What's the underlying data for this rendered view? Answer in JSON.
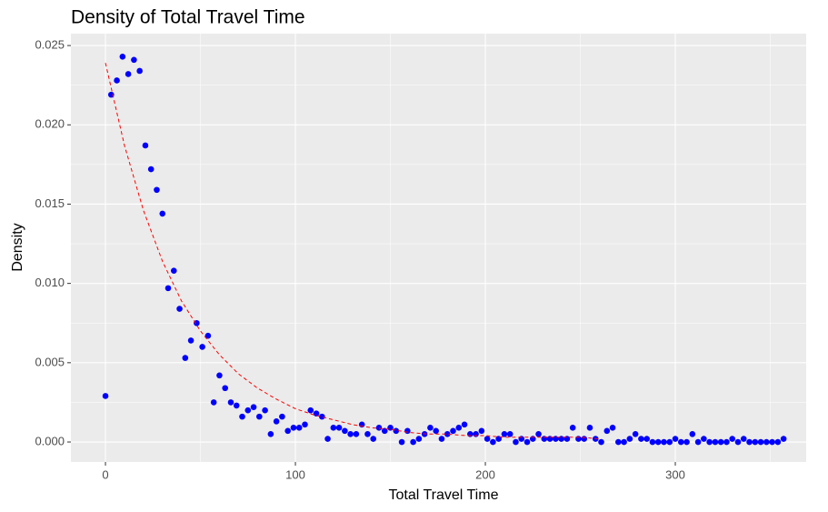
{
  "chart_data": {
    "type": "scatter",
    "title": "Density of Total Travel Time",
    "xlabel": "Total Travel Time",
    "ylabel": "Density",
    "xlim": [
      -18.2,
      368.9
    ],
    "xticks": [
      0,
      100,
      200,
      300
    ],
    "ylim": [
      -0.00126,
      0.02575
    ],
    "yticks": [
      {
        "value": 0,
        "label": "0.000"
      },
      {
        "value": 0.005,
        "label": "0.005"
      },
      {
        "value": 0.01,
        "label": "0.010"
      },
      {
        "value": 0.015,
        "label": "0.015"
      },
      {
        "value": 0.02,
        "label": "0.020"
      },
      {
        "value": 0.025,
        "label": "0.025"
      }
    ],
    "grid": true,
    "series": [
      {
        "mode": "points",
        "color": "#0000ff",
        "x": [
          0,
          3,
          6,
          9,
          12,
          15,
          18,
          21,
          24,
          27,
          30,
          33,
          36,
          39,
          42,
          45,
          48,
          51,
          54,
          57,
          60,
          63,
          66,
          69,
          72,
          75,
          78,
          81,
          84,
          87,
          90,
          93,
          96,
          99,
          102,
          105,
          108,
          111,
          114,
          117,
          120,
          123,
          126,
          129,
          132,
          135,
          138,
          141,
          144,
          147,
          150,
          153,
          156,
          159,
          162,
          165,
          168,
          171,
          174,
          177,
          180,
          183,
          186,
          189,
          192,
          195,
          198,
          201,
          204,
          207,
          210,
          213,
          216,
          219,
          222,
          225,
          228,
          231,
          234,
          237,
          240,
          243,
          246,
          249,
          252,
          255,
          258,
          261,
          264,
          267,
          270,
          273,
          276,
          279,
          282,
          285,
          288,
          291,
          294,
          297,
          300,
          303,
          306,
          309,
          312,
          315,
          318,
          321,
          324,
          327,
          330,
          333,
          336,
          339,
          342,
          345,
          348,
          351,
          354,
          357
        ],
        "values": [
          0.0029,
          0.0219,
          0.0228,
          0.0243,
          0.0232,
          0.0241,
          0.0234,
          0.0187,
          0.0172,
          0.0159,
          0.0144,
          0.0097,
          0.0108,
          0.0084,
          0.0053,
          0.0064,
          0.0075,
          0.006,
          0.0067,
          0.0025,
          0.0042,
          0.0034,
          0.0025,
          0.0023,
          0.0016,
          0.002,
          0.0022,
          0.0016,
          0.002,
          0.0005,
          0.0013,
          0.0016,
          0.0007,
          0.0009,
          0.0009,
          0.0011,
          0.002,
          0.0018,
          0.0016,
          0.0002,
          0.0009,
          0.0009,
          0.0007,
          0.0005,
          0.0005,
          0.0011,
          0.0005,
          0.0002,
          0.0009,
          0.0007,
          0.0009,
          0.0007,
          0,
          0.0007,
          0,
          0.0002,
          0.0005,
          0.0009,
          0.0007,
          0.0002,
          0.0005,
          0.0007,
          0.0009,
          0.0011,
          0.0005,
          0.0005,
          0.0007,
          0.0002,
          0,
          0.0002,
          0.0005,
          0.0005,
          0,
          0.0002,
          0,
          0.0002,
          0.0005,
          0.0002,
          0.0002,
          0.0002,
          0.0002,
          0.0002,
          0.0009,
          0.0002,
          0.0002,
          0.0009,
          0.0002,
          0,
          0.0007,
          0.0009,
          0,
          0,
          0.0002,
          0.0005,
          0.0002,
          0.0002,
          0,
          0,
          0,
          0,
          0.0002,
          0,
          0,
          0.0005,
          0,
          0.0002,
          0,
          0,
          0,
          0,
          0.0002,
          0,
          0.0002,
          0,
          0,
          0,
          0,
          0,
          0,
          0.0002
        ]
      },
      {
        "mode": "line",
        "color": "#ff0000",
        "dash": "4 3",
        "x": [
          0,
          10,
          20,
          30,
          40,
          50,
          60,
          70,
          80,
          90,
          100,
          110,
          120,
          130,
          140,
          150,
          160,
          170,
          180,
          190,
          200,
          210,
          220,
          230,
          240,
          250,
          260
        ],
        "values": [
          0.0239,
          0.0187,
          0.0146,
          0.0114,
          0.0089,
          0.007,
          0.0055,
          0.0043,
          0.0034,
          0.0027,
          0.0021,
          0.0017,
          0.0014,
          0.0011,
          0.0009,
          0.0008,
          0.0006,
          0.0005,
          0.0005,
          0.0004,
          0.0004,
          0.0003,
          0.0003,
          0.0003,
          0.0003,
          0.0003,
          0.0002
        ]
      }
    ]
  }
}
